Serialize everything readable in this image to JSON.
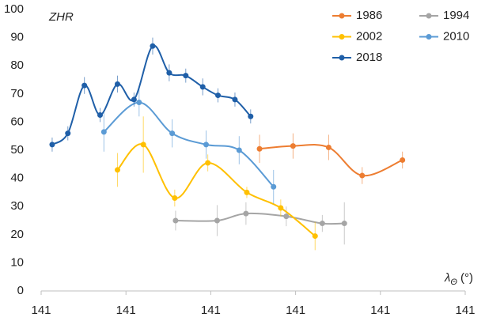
{
  "chart_data": {
    "type": "line",
    "y_label": "ZHR",
    "x_label": "λ",
    "x_label_sub": "Θ",
    "x_label_unit": "(°)",
    "xlim": [
      140.6,
      141.6
    ],
    "xticks": [
      {
        "value": 140.6,
        "label": "141"
      },
      {
        "value": 140.8,
        "label": "141"
      },
      {
        "value": 141.0,
        "label": "141"
      },
      {
        "value": 141.2,
        "label": "141"
      },
      {
        "value": 141.4,
        "label": "141"
      },
      {
        "value": 141.6,
        "label": "141"
      }
    ],
    "ylim": [
      0,
      100
    ],
    "yticks": [
      0,
      10,
      20,
      30,
      40,
      50,
      60,
      70,
      80,
      90,
      100
    ],
    "grid": false,
    "smooth": true,
    "legend": "top-right",
    "series": [
      {
        "name": "1986",
        "color": "#ed7d31",
        "x": [
          141.115,
          141.194,
          141.278,
          141.357,
          141.452
        ],
        "values": [
          50.5,
          51.5,
          51,
          41,
          46.5
        ],
        "errors": [
          5,
          4.5,
          4.5,
          3,
          3
        ]
      },
      {
        "name": "1994",
        "color": "#a5a5a5",
        "x": [
          140.917,
          141.015,
          141.083,
          141.178,
          141.263,
          141.315
        ],
        "values": [
          25,
          25,
          27.5,
          26.5,
          24,
          24
        ],
        "errors": [
          3.5,
          5.5,
          4,
          3.5,
          3,
          7.5
        ]
      },
      {
        "name": "2002",
        "color": "#ffc000",
        "x": [
          140.78,
          140.841,
          140.915,
          140.993,
          141.085,
          141.165,
          141.246
        ],
        "values": [
          43,
          52,
          33,
          45.5,
          35,
          29.5,
          19.5
        ],
        "errors": [
          6,
          10,
          3,
          3,
          2,
          3,
          5
        ]
      },
      {
        "name": "2010",
        "color": "#5b9bd5",
        "x": [
          140.748,
          140.831,
          140.909,
          140.989,
          141.067,
          141.148
        ],
        "values": [
          56.5,
          67,
          56,
          52,
          50,
          37
        ],
        "errors": [
          7,
          5,
          5,
          5,
          5,
          6
        ]
      },
      {
        "name": "2018",
        "color": "#1f5fa8",
        "x": [
          140.626,
          140.663,
          140.702,
          140.739,
          140.78,
          140.819,
          140.863,
          140.902,
          140.941,
          140.981,
          141.017,
          141.057,
          141.094
        ],
        "values": [
          52,
          56,
          73,
          62.5,
          73.5,
          68,
          87,
          77.5,
          76.5,
          72.5,
          69.5,
          68,
          62
        ],
        "errors": [
          2.5,
          2.5,
          3,
          2.5,
          3,
          2.5,
          3,
          3,
          2.5,
          3,
          2.5,
          2.5,
          2.5
        ]
      }
    ]
  }
}
